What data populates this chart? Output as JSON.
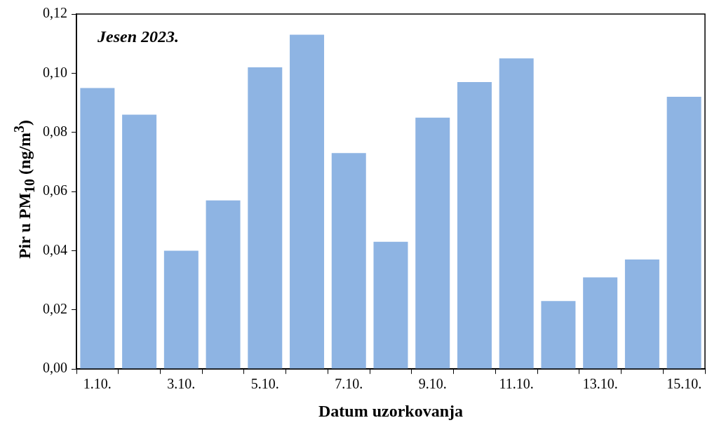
{
  "chart_data": {
    "type": "bar",
    "ylabel": "Pir u PM$_{10}$ (ng/m$^{3}$)",
    "xlabel": "Datum uzorkovanja",
    "annotations": [
      "Jesen 2023."
    ],
    "categories": [
      "1.10.",
      null,
      "3.10.",
      null,
      "5.10.",
      null,
      "7.10.",
      null,
      "9.10.",
      null,
      "11.10.",
      null,
      "13.10.",
      null,
      "15.10."
    ],
    "values": [
      0.095,
      0.086,
      0.04,
      0.057,
      0.102,
      0.113,
      0.073,
      0.043,
      0.085,
      0.097,
      0.105,
      0.023,
      0.031,
      0.037,
      0.092
    ],
    "color": "#8eb4e3",
    "ylim": [
      0,
      0.12
    ],
    "yticks": [
      {
        "value": 0,
        "label": "0,00"
      },
      {
        "value": 0.02,
        "label": "0,02"
      },
      {
        "value": 0.04,
        "label": "0,04"
      },
      {
        "value": 0.06,
        "label": "0,06"
      },
      {
        "value": 0.08,
        "label": "0,08"
      },
      {
        "value": 0.1,
        "label": "0,10"
      },
      {
        "value": 0.12,
        "label": "0,12"
      }
    ],
    "grid": false,
    "legend": false
  }
}
